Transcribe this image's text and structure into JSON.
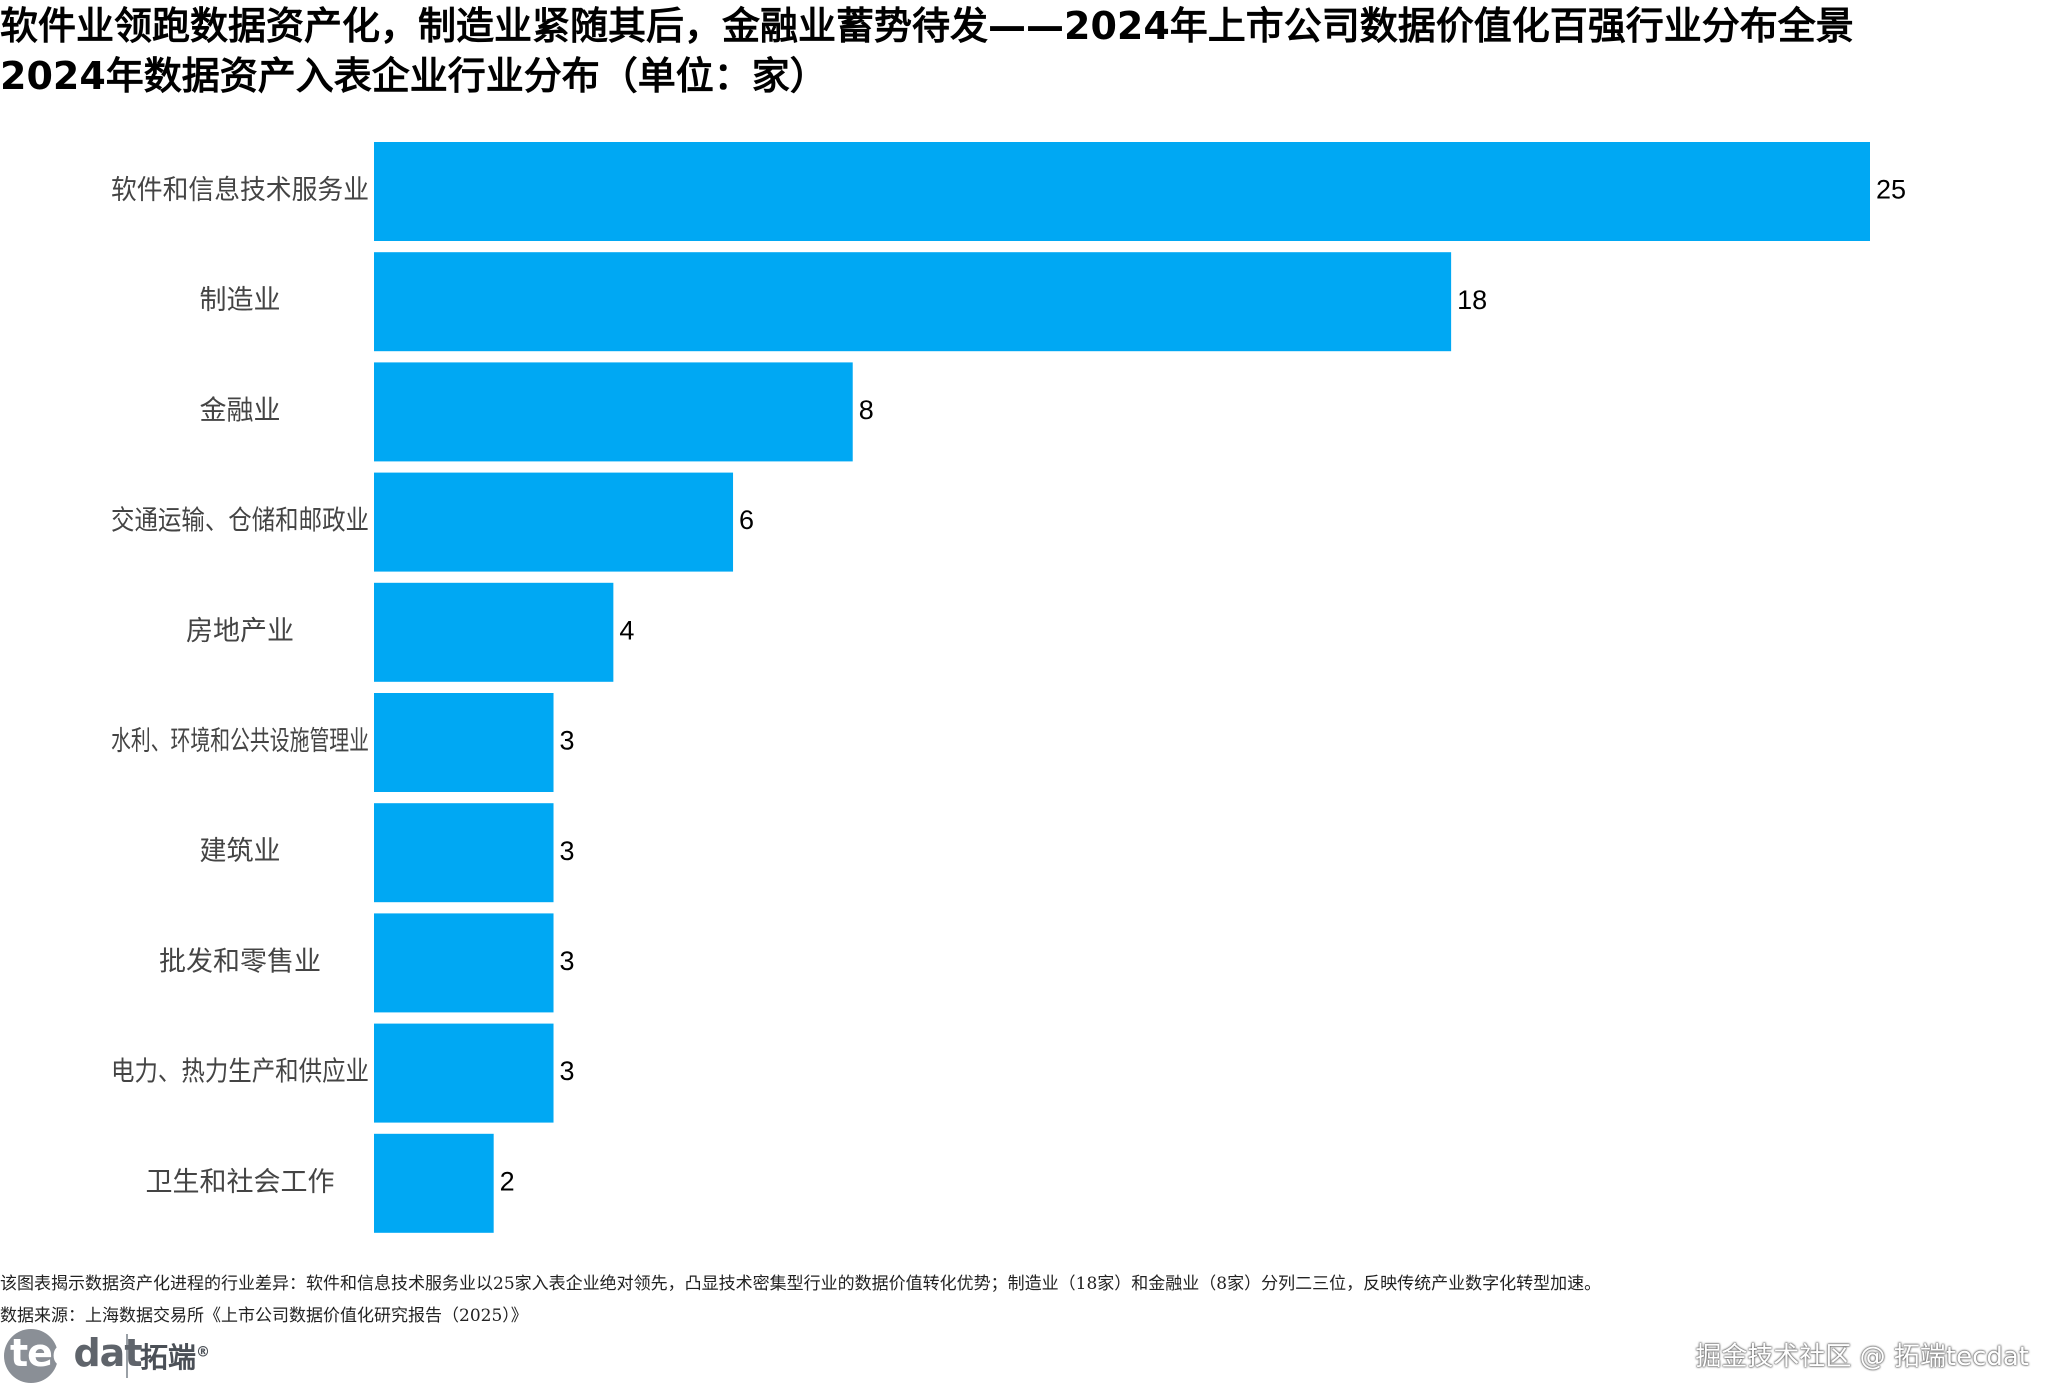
{
  "title": "软件业领跑数据资产化，制造业紧随其后，金融业蓄势待发——2024年上市公司数据价值化百强行业分布全景",
  "subtitle": "2024年数据资产入表企业行业分布（单位：家）",
  "chart_data": {
    "type": "bar",
    "orientation": "horizontal",
    "categories": [
      "软件和信息技术服务业",
      "制造业",
      "金融业",
      "交通运输、仓储和邮政业",
      "房地产业",
      "水利、环境和公共设施管理业",
      "建筑业",
      "批发和零售业",
      "电力、热力生产和供应业",
      "卫生和社会工作"
    ],
    "values": [
      25,
      18,
      8,
      6,
      4,
      3,
      3,
      3,
      3,
      2
    ],
    "xlim": [
      0,
      25
    ],
    "bar_color": "#00A8F3",
    "grid": false,
    "legend": "none"
  },
  "footer": {
    "note": "该图表揭示数据资产化进程的行业差异：软件和信息技术服务业以25家入表企业绝对领先，凸显技术密集型行业的数据价值转化优势；制造业（18家）和金融业（8家）分列二三位，反映传统产业数字化转型加速。",
    "source": "数据来源：上海数据交易所《上市公司数据价值化研究报告（2025）》"
  },
  "logo": {
    "word_a": "tec",
    "word_b": "dat",
    "cn": "拓端",
    "mark": "®"
  },
  "watermark": "掘金技术社区 @ 拓端tecdat"
}
